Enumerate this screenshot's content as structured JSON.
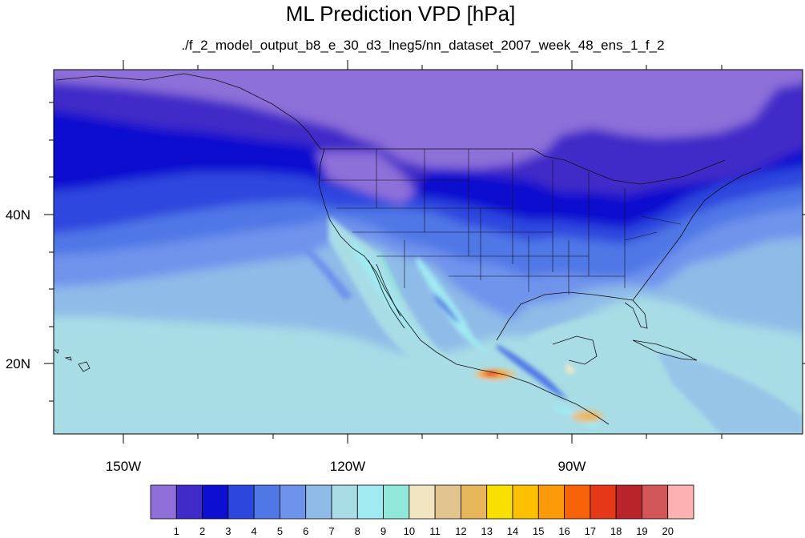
{
  "title": "ML Prediction VPD [hPa]",
  "subtitle": "./f_2_model_output_b8_e_30_d3_lneg5/nn_dataset_2007_week_48_ens_1_f_2",
  "axes": {
    "lon_labels": [
      "150W",
      "120W",
      "90W"
    ],
    "lat_labels": [
      "40N",
      "20N"
    ]
  },
  "map": {
    "projection": "cylindrical equidistant",
    "lon_range": [
      -160,
      -60
    ],
    "lat_range": [
      10,
      60
    ],
    "field": "VPD",
    "units": "hPa"
  },
  "colorbar": {
    "orientation": "horizontal",
    "labels": [
      "1",
      "2",
      "3",
      "4",
      "5",
      "6",
      "7",
      "8",
      "9",
      "10",
      "11",
      "12",
      "13",
      "14",
      "15",
      "16",
      "17",
      "18",
      "19",
      "20"
    ],
    "colors": [
      "#8e6fd9",
      "#3f2bc8",
      "#0c0fcf",
      "#2d46de",
      "#4f77e6",
      "#6f93ec",
      "#8fbbe8",
      "#a8dde6",
      "#a0eaf2",
      "#90e8da",
      "#f2e6c2",
      "#e2c48e",
      "#e8b65a",
      "#fae000",
      "#fdc000",
      "#fc9a0a",
      "#f8630a",
      "#e43818",
      "#b8242a",
      "#d25658",
      "#fcb2b2"
    ]
  },
  "chart_data": {
    "type": "heatmap",
    "title": "ML Prediction VPD [hPa]",
    "subtitle": "./f_2_model_output_b8_e_30_d3_lneg5/nn_dataset_2007_week_48_ens_1_f_2",
    "x": [
      -160,
      -60
    ],
    "y": [
      10,
      60
    ],
    "xticks": [
      "150W",
      "120W",
      "90W"
    ],
    "yticks": [
      "40N",
      "20N"
    ],
    "levels": [
      1,
      2,
      3,
      4,
      5,
      6,
      7,
      8,
      9,
      10,
      11,
      12,
      13,
      14,
      15,
      16,
      17,
      18,
      19,
      20
    ]
  }
}
